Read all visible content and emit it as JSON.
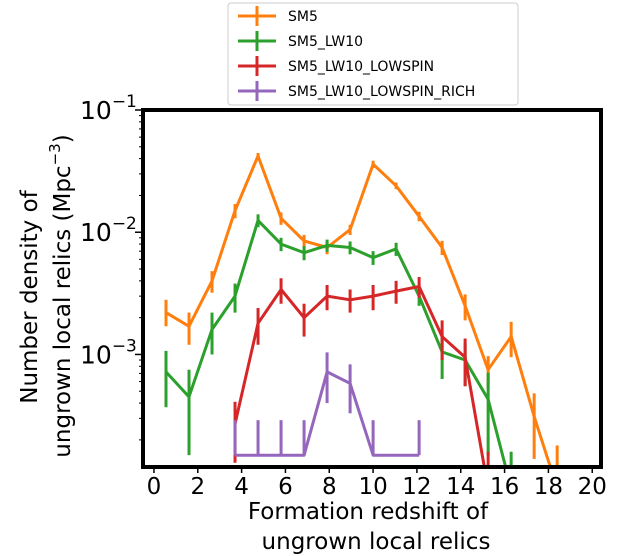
{
  "chart_data": {
    "type": "line",
    "title": "",
    "xlabel_line1": "Formation redshift of",
    "xlabel_line2": "ungrown local relics",
    "ylabel_line1": "Number density of",
    "ylabel_line2": "ungrown local relics  (Mpc",
    "ylabel_sup": "−3",
    "ylabel_close": ")",
    "xlim": [
      -0.5,
      20.4
    ],
    "ylim": [
      0.00012,
      0.1
    ],
    "yscale": "log",
    "xticks": [
      0,
      2,
      4,
      6,
      8,
      10,
      12,
      14,
      16,
      18,
      20
    ],
    "xtick_labels": [
      "0",
      "2",
      "4",
      "6",
      "8",
      "10",
      "12",
      "14",
      "16",
      "18",
      "20"
    ],
    "yticks": [
      {
        "value": 0.1,
        "base": "10",
        "exp": "−1"
      },
      {
        "value": 0.01,
        "base": "10",
        "exp": "−2"
      },
      {
        "value": 0.001,
        "base": "10",
        "exp": "−3"
      }
    ],
    "grid": false,
    "legend_position": "above-plot",
    "series": [
      {
        "name": "SM5",
        "color": "#ff7f0e",
        "x": [
          0.55,
          1.6,
          2.65,
          3.7,
          4.75,
          5.8,
          6.85,
          7.9,
          8.95,
          10.0,
          11.05,
          12.1,
          13.15,
          14.2,
          15.25,
          16.3,
          17.35,
          18.4
        ],
        "y": [
          0.0022,
          0.0017,
          0.004,
          0.015,
          0.042,
          0.013,
          0.0085,
          0.0075,
          0.0105,
          0.036,
          0.024,
          0.0135,
          0.0075,
          0.0025,
          0.00075,
          0.0014,
          0.00031,
          8e-05
        ],
        "err_lo": [
          0.0005,
          0.0005,
          0.0008,
          0.002,
          0.0025,
          0.0015,
          0.001,
          0.0009,
          0.001,
          0.0025,
          0.0015,
          0.0012,
          0.001,
          0.0006,
          0.00022,
          0.00045,
          0.00017,
          0
        ],
        "err_hi": [
          0.0006,
          0.0005,
          0.0008,
          0.002,
          0.0025,
          0.0015,
          0.001,
          0.0009,
          0.001,
          0.0025,
          0.0015,
          0.0012,
          0.001,
          0.0006,
          0.00022,
          0.00045,
          0.00017,
          0.0001
        ]
      },
      {
        "name": "SM5_LW10",
        "color": "#2ca02c",
        "x": [
          0.55,
          1.6,
          2.65,
          3.7,
          4.75,
          5.8,
          6.85,
          7.9,
          8.95,
          10.0,
          11.05,
          12.1,
          13.15,
          14.2,
          15.25,
          16.3
        ],
        "y": [
          0.00072,
          0.00045,
          0.0016,
          0.003,
          0.0125,
          0.008,
          0.0068,
          0.0078,
          0.0075,
          0.0062,
          0.0073,
          0.003,
          0.00105,
          0.0009,
          0.00043,
          8e-05
        ],
        "err_lo": [
          0.00035,
          0.0003,
          0.0006,
          0.0008,
          0.0015,
          0.001,
          0.0009,
          0.0009,
          0.0009,
          0.0008,
          0.0009,
          0.0005,
          0.00042,
          0.00035,
          0.00028,
          0
        ],
        "err_hi": [
          0.00035,
          0.0003,
          0.0006,
          0.0008,
          0.0015,
          0.001,
          0.0009,
          0.0009,
          0.0009,
          0.0008,
          0.0009,
          0.0005,
          0.00042,
          0.00035,
          0.00028,
          8e-05
        ]
      },
      {
        "name": "SM5_LW10_LOWSPIN",
        "color": "#d62728",
        "x": [
          3.7,
          4.75,
          5.8,
          6.85,
          7.9,
          8.95,
          10.0,
          11.05,
          12.1,
          13.15,
          14.2,
          15.25
        ],
        "y": [
          0.00027,
          0.0018,
          0.0034,
          0.002,
          0.003,
          0.0028,
          0.003,
          0.0033,
          0.0036,
          0.0014,
          0.00095,
          8e-05
        ],
        "err_lo": [
          0.00014,
          0.0006,
          0.0008,
          0.0006,
          0.0007,
          0.0006,
          0.0007,
          0.0007,
          0.0007,
          0.0005,
          0.0004,
          0
        ],
        "err_hi": [
          0.00014,
          0.0006,
          0.0008,
          0.0006,
          0.0007,
          0.0006,
          0.0007,
          0.0007,
          0.0007,
          0.0005,
          0.0004,
          8e-05
        ]
      },
      {
        "name": "SM5_LW10_LOWSPIN_RICH",
        "color": "#9467bd",
        "x": [
          3.7,
          4.75,
          5.8,
          6.85,
          7.9,
          8.95,
          10.0,
          12.1
        ],
        "y": [
          0.00015,
          0.00015,
          0.00015,
          0.00015,
          0.00072,
          0.00058,
          0.00015,
          0.00015
        ],
        "err_lo": [
          0,
          0,
          0,
          0,
          0.00032,
          0.00025,
          0,
          0
        ],
        "err_hi": [
          0.00014,
          0.00014,
          0.00014,
          0.00014,
          0.00032,
          0.00025,
          0.00014,
          0.00014
        ]
      }
    ]
  }
}
